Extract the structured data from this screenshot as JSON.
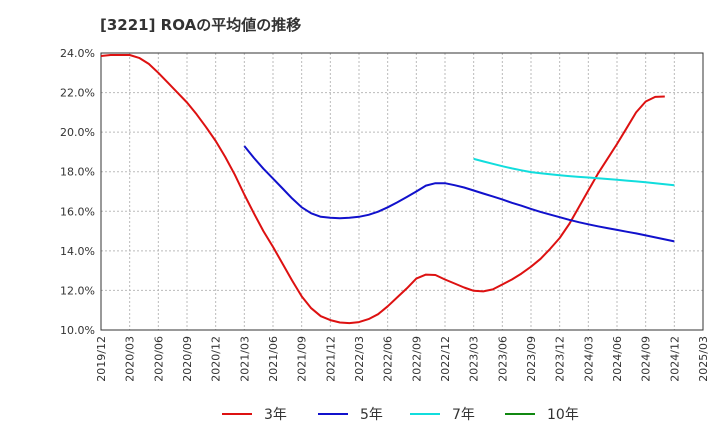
{
  "title": "[3221]  ROAの平均値の推移",
  "chart_data": {
    "type": "line",
    "title": "[3221]  ROAの平均値の推移",
    "xlabel": "",
    "ylabel": "",
    "ylim": [
      10.0,
      24.0
    ],
    "grid": true,
    "legend_position": "bottom",
    "y_ticks": [
      "10.0%",
      "12.0%",
      "14.0%",
      "16.0%",
      "18.0%",
      "20.0%",
      "22.0%",
      "24.0%"
    ],
    "x_ticks": [
      "2019/12",
      "2020/03",
      "2020/06",
      "2020/09",
      "2020/12",
      "2021/03",
      "2021/06",
      "2021/09",
      "2021/12",
      "2022/03",
      "2022/06",
      "2022/09",
      "2022/12",
      "2023/03",
      "2023/06",
      "2023/09",
      "2023/12",
      "2024/03",
      "2024/06",
      "2024/09",
      "2024/12",
      "2025/03"
    ],
    "series": [
      {
        "name": "3年",
        "color": "#dd1111",
        "points": [
          [
            "2019/12",
            23.85
          ],
          [
            "2020/01",
            23.9
          ],
          [
            "2020/02",
            23.9
          ],
          [
            "2020/03",
            23.9
          ],
          [
            "2020/04",
            23.75
          ],
          [
            "2020/05",
            23.45
          ],
          [
            "2020/06",
            23.0
          ],
          [
            "2020/07",
            22.5
          ],
          [
            "2020/08",
            22.0
          ],
          [
            "2020/09",
            21.5
          ],
          [
            "2020/10",
            20.9
          ],
          [
            "2020/11",
            20.25
          ],
          [
            "2020/12",
            19.55
          ],
          [
            "2021/01",
            18.75
          ],
          [
            "2021/02",
            17.85
          ],
          [
            "2021/03",
            16.85
          ],
          [
            "2021/04",
            15.9
          ],
          [
            "2021/05",
            15.0
          ],
          [
            "2021/06",
            14.2
          ],
          [
            "2021/07",
            13.35
          ],
          [
            "2021/08",
            12.5
          ],
          [
            "2021/09",
            11.7
          ],
          [
            "2021/10",
            11.1
          ],
          [
            "2021/11",
            10.7
          ],
          [
            "2021/12",
            10.5
          ],
          [
            "2022/01",
            10.38
          ],
          [
            "2022/02",
            10.35
          ],
          [
            "2022/03",
            10.4
          ],
          [
            "2022/04",
            10.55
          ],
          [
            "2022/05",
            10.8
          ],
          [
            "2022/06",
            11.2
          ],
          [
            "2022/07",
            11.65
          ],
          [
            "2022/08",
            12.1
          ],
          [
            "2022/09",
            12.6
          ],
          [
            "2022/10",
            12.8
          ],
          [
            "2022/11",
            12.78
          ],
          [
            "2022/12",
            12.55
          ],
          [
            "2023/01",
            12.35
          ],
          [
            "2023/02",
            12.15
          ],
          [
            "2023/03",
            11.98
          ],
          [
            "2023/04",
            11.95
          ],
          [
            "2023/05",
            12.05
          ],
          [
            "2023/06",
            12.3
          ],
          [
            "2023/07",
            12.55
          ],
          [
            "2023/08",
            12.85
          ],
          [
            "2023/09",
            13.2
          ],
          [
            "2023/10",
            13.6
          ],
          [
            "2023/11",
            14.1
          ],
          [
            "2023/12",
            14.65
          ],
          [
            "2024/01",
            15.35
          ],
          [
            "2024/02",
            16.2
          ],
          [
            "2024/03",
            17.05
          ],
          [
            "2024/04",
            17.9
          ],
          [
            "2024/05",
            18.65
          ],
          [
            "2024/06",
            19.4
          ],
          [
            "2024/07",
            20.2
          ],
          [
            "2024/08",
            21.0
          ],
          [
            "2024/09",
            21.55
          ],
          [
            "2024/10",
            21.78
          ],
          [
            "2024/11",
            21.8
          ]
        ]
      },
      {
        "name": "5年",
        "color": "#1111cc",
        "points": [
          [
            "2021/03",
            19.3
          ],
          [
            "2021/04",
            18.7
          ],
          [
            "2021/05",
            18.15
          ],
          [
            "2021/06",
            17.65
          ],
          [
            "2021/07",
            17.15
          ],
          [
            "2021/08",
            16.65
          ],
          [
            "2021/09",
            16.2
          ],
          [
            "2021/10",
            15.9
          ],
          [
            "2021/11",
            15.72
          ],
          [
            "2021/12",
            15.67
          ],
          [
            "2022/01",
            15.65
          ],
          [
            "2022/02",
            15.67
          ],
          [
            "2022/03",
            15.72
          ],
          [
            "2022/04",
            15.82
          ],
          [
            "2022/05",
            15.98
          ],
          [
            "2022/06",
            16.2
          ],
          [
            "2022/07",
            16.45
          ],
          [
            "2022/08",
            16.72
          ],
          [
            "2022/09",
            17.0
          ],
          [
            "2022/10",
            17.3
          ],
          [
            "2022/11",
            17.42
          ],
          [
            "2022/12",
            17.42
          ],
          [
            "2023/01",
            17.32
          ],
          [
            "2023/02",
            17.2
          ],
          [
            "2023/03",
            17.05
          ],
          [
            "2023/04",
            16.9
          ],
          [
            "2023/05",
            16.75
          ],
          [
            "2023/06",
            16.6
          ],
          [
            "2023/07",
            16.43
          ],
          [
            "2023/08",
            16.28
          ],
          [
            "2023/09",
            16.12
          ],
          [
            "2023/10",
            15.97
          ],
          [
            "2023/11",
            15.83
          ],
          [
            "2023/12",
            15.7
          ],
          [
            "2024/01",
            15.57
          ],
          [
            "2024/02",
            15.45
          ],
          [
            "2024/03",
            15.34
          ],
          [
            "2024/04",
            15.24
          ],
          [
            "2024/05",
            15.15
          ],
          [
            "2024/06",
            15.06
          ],
          [
            "2024/07",
            14.97
          ],
          [
            "2024/08",
            14.88
          ],
          [
            "2024/09",
            14.78
          ],
          [
            "2024/10",
            14.68
          ],
          [
            "2024/11",
            14.58
          ],
          [
            "2024/12",
            14.48
          ]
        ]
      },
      {
        "name": "7年",
        "color": "#11dddd",
        "points": [
          [
            "2023/03",
            18.65
          ],
          [
            "2023/04",
            18.52
          ],
          [
            "2023/05",
            18.4
          ],
          [
            "2023/06",
            18.28
          ],
          [
            "2023/07",
            18.17
          ],
          [
            "2023/08",
            18.07
          ],
          [
            "2023/09",
            17.98
          ],
          [
            "2023/10",
            17.92
          ],
          [
            "2023/11",
            17.87
          ],
          [
            "2023/12",
            17.82
          ],
          [
            "2024/01",
            17.78
          ],
          [
            "2024/02",
            17.74
          ],
          [
            "2024/03",
            17.71
          ],
          [
            "2024/04",
            17.67
          ],
          [
            "2024/05",
            17.63
          ],
          [
            "2024/06",
            17.59
          ],
          [
            "2024/07",
            17.55
          ],
          [
            "2024/08",
            17.51
          ],
          [
            "2024/09",
            17.47
          ],
          [
            "2024/10",
            17.42
          ],
          [
            "2024/11",
            17.37
          ],
          [
            "2024/12",
            17.32
          ]
        ]
      },
      {
        "name": "10年",
        "color": "#118811",
        "points": []
      }
    ]
  }
}
